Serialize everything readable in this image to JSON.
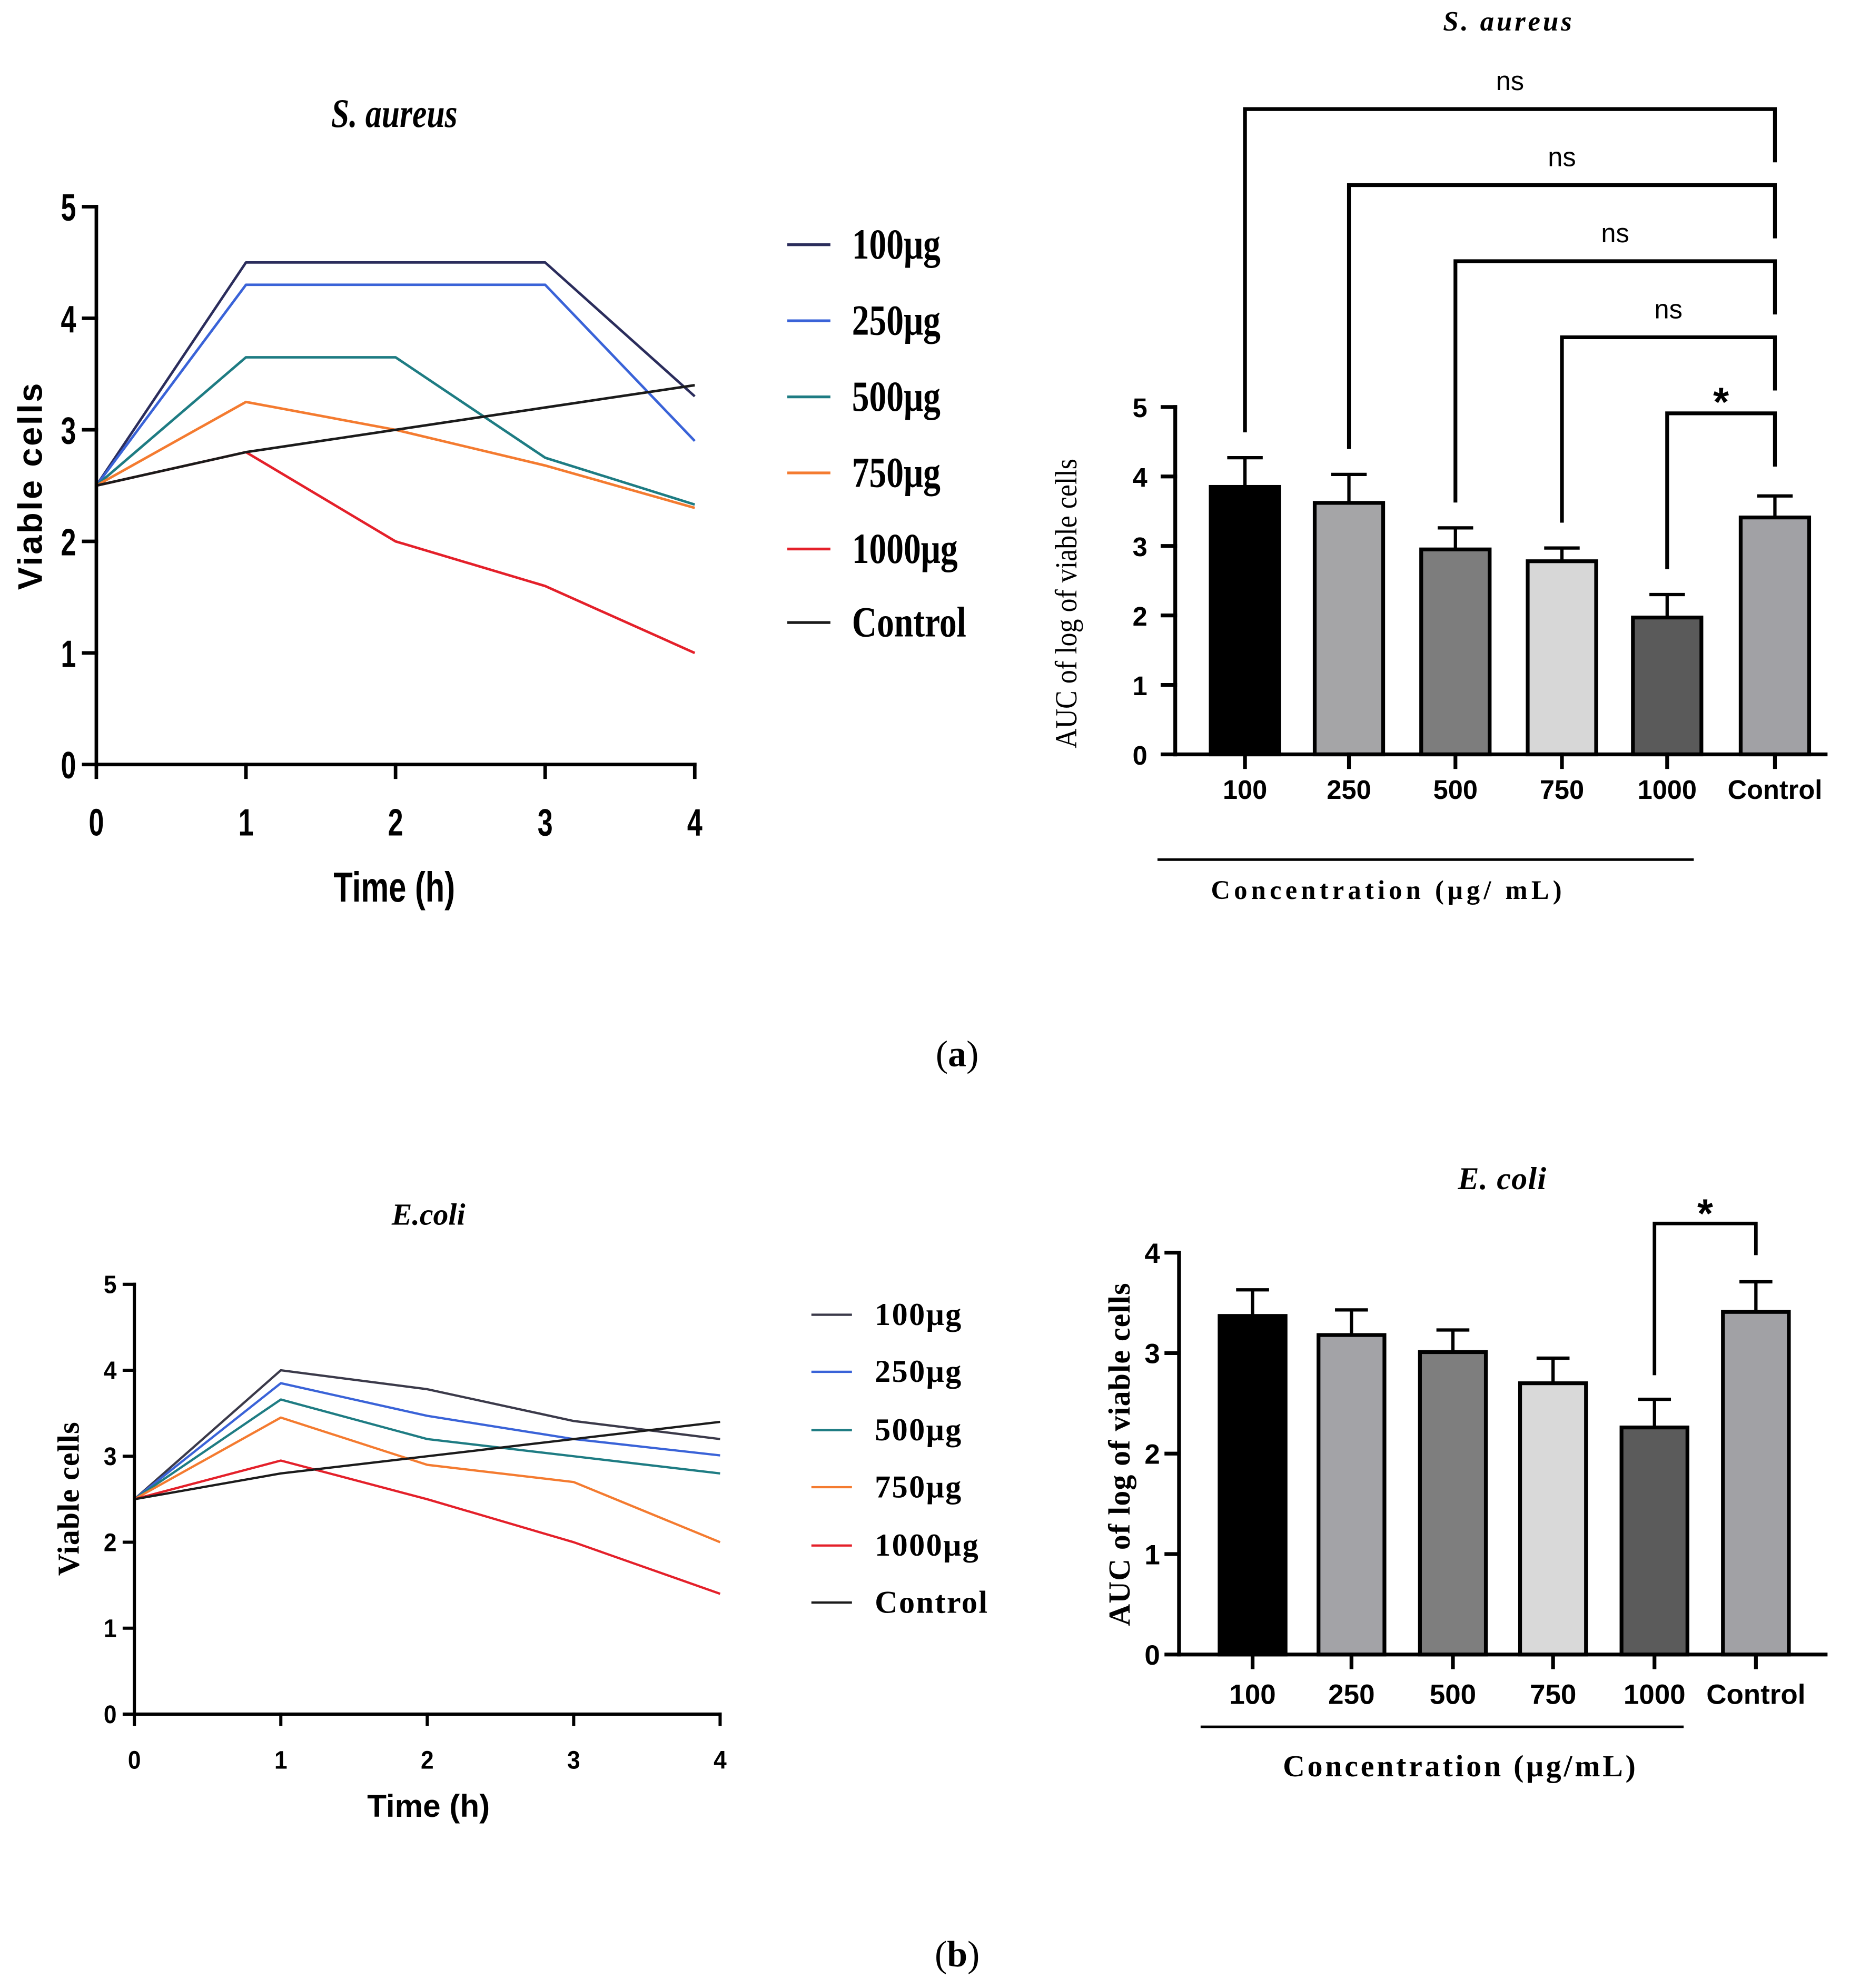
{
  "figure": {
    "panels": [
      {
        "parts": [
          "(",
          "a",
          ")"
        ]
      },
      {
        "parts": [
          "(",
          "b",
          ")"
        ]
      }
    ]
  },
  "chart_data": [
    {
      "type": "line",
      "title": "S. aureus",
      "xlabel": "Time (h)",
      "ylabel": "Viable cells",
      "x": [
        0,
        1,
        2,
        3,
        4
      ],
      "xlim": [
        0,
        4
      ],
      "ylim": [
        0,
        5
      ],
      "xticks": [
        0,
        1,
        2,
        3,
        4
      ],
      "yticks": [
        0,
        1,
        2,
        3,
        4,
        5
      ],
      "grid": false,
      "legend_position": "right",
      "series": [
        {
          "name": "100μg",
          "color": "#2b2d5c",
          "values": [
            2.5,
            4.5,
            4.5,
            4.5,
            3.3
          ]
        },
        {
          "name": "250μg",
          "color": "#3a63d8",
          "values": [
            2.5,
            4.3,
            4.3,
            4.3,
            2.9
          ]
        },
        {
          "name": "500μg",
          "color": "#1e7c83",
          "values": [
            2.5,
            3.65,
            3.65,
            2.75,
            2.33
          ]
        },
        {
          "name": "750μg",
          "color": "#f47b30",
          "values": [
            2.5,
            3.25,
            3.0,
            2.68,
            2.3
          ]
        },
        {
          "name": "1000μg",
          "color": "#e4202a",
          "values": [
            2.5,
            2.8,
            2.0,
            1.6,
            1.0
          ]
        },
        {
          "name": "Control",
          "color": "#1b1b1b",
          "values": [
            2.5,
            2.8,
            3.0,
            3.2,
            3.4
          ]
        }
      ]
    },
    {
      "type": "bar",
      "title": "S. aureus",
      "xlabel": "Concentration (μg/ mL)",
      "ylabel": "AUC of log of viable cells",
      "categories": [
        "100",
        "250",
        "500",
        "750",
        "1000",
        "Control"
      ],
      "values": [
        3.85,
        3.62,
        2.95,
        2.78,
        1.97,
        3.41
      ],
      "errors": [
        0.42,
        0.41,
        0.31,
        0.19,
        0.33,
        0.31
      ],
      "colors": [
        "#000000",
        "#a5a5a7",
        "#7d7d7d",
        "#d7d7d7",
        "#5a5a5a",
        "#a1a1a5"
      ],
      "ylim": [
        0,
        5
      ],
      "yticks": [
        0,
        1,
        2,
        3,
        4,
        5
      ],
      "grid": false,
      "comparisons": [
        {
          "from": "100",
          "to": "Control",
          "label": "ns"
        },
        {
          "from": "250",
          "to": "Control",
          "label": "ns"
        },
        {
          "from": "500",
          "to": "Control",
          "label": "ns"
        },
        {
          "from": "750",
          "to": "Control",
          "label": "ns"
        },
        {
          "from": "1000",
          "to": "Control",
          "label": "*"
        }
      ]
    },
    {
      "type": "line",
      "title": "E.coli",
      "xlabel": "Time (h)",
      "ylabel": "Viable cells",
      "x": [
        0,
        1,
        2,
        3,
        4
      ],
      "xlim": [
        0,
        4
      ],
      "ylim": [
        0,
        5
      ],
      "xticks": [
        0,
        1,
        2,
        3,
        4
      ],
      "yticks": [
        0,
        1,
        2,
        3,
        4,
        5
      ],
      "grid": false,
      "legend_position": "right",
      "series": [
        {
          "name": "100μg",
          "color": "#3b3a4a",
          "values": [
            2.5,
            4.0,
            3.78,
            3.41,
            3.2
          ]
        },
        {
          "name": "250μg",
          "color": "#3a63d8",
          "values": [
            2.5,
            3.85,
            3.47,
            3.2,
            3.01
          ]
        },
        {
          "name": "500μg",
          "color": "#1e7c83",
          "values": [
            2.5,
            3.66,
            3.2,
            3.0,
            2.8
          ]
        },
        {
          "name": "750μg",
          "color": "#f47b30",
          "values": [
            2.5,
            3.45,
            2.9,
            2.7,
            2.0
          ]
        },
        {
          "name": "1000μg",
          "color": "#e4202a",
          "values": [
            2.5,
            2.95,
            2.5,
            2.0,
            1.4
          ]
        },
        {
          "name": "Control",
          "color": "#1b1b1b",
          "values": [
            2.5,
            2.8,
            3.0,
            3.2,
            3.4
          ]
        }
      ]
    },
    {
      "type": "bar",
      "title": "E. coli",
      "xlabel": "Concentration (μg/mL)",
      "ylabel": "AUC of log of viable cells",
      "categories": [
        "100",
        "250",
        "500",
        "750",
        "1000",
        "Control"
      ],
      "values": [
        3.37,
        3.18,
        3.01,
        2.7,
        2.26,
        3.41
      ],
      "errors": [
        0.26,
        0.25,
        0.22,
        0.25,
        0.28,
        0.3
      ],
      "colors": [
        "#000000",
        "#a3a3a7",
        "#7e7e7e",
        "#d9d9d9",
        "#5b5b5b",
        "#a1a1a5"
      ],
      "ylim": [
        0,
        4
      ],
      "yticks": [
        0,
        1,
        2,
        3,
        4
      ],
      "grid": false,
      "comparisons": [
        {
          "from": "1000",
          "to": "Control",
          "label": "*"
        }
      ]
    }
  ]
}
